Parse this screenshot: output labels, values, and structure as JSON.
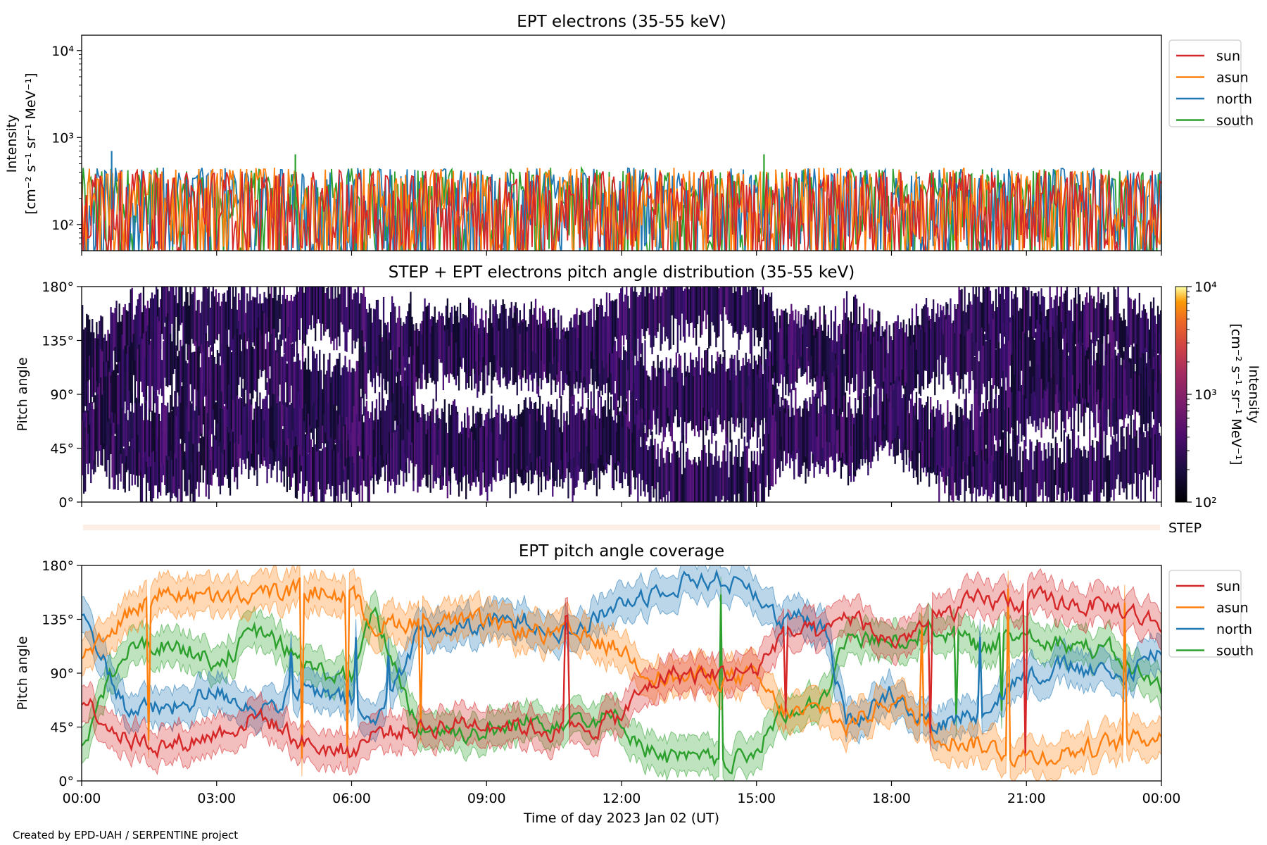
{
  "footer": {
    "credit": "Created by EPD-UAH / SERPENTINE project"
  },
  "colors": {
    "sun": "#d62728",
    "asun": "#ff7f0e",
    "north": "#1f77b4",
    "south": "#2ca02c",
    "step_strip": "#fdeee6"
  },
  "chart_data": [
    {
      "type": "line",
      "title": "EPT electrons (35-55 keV)",
      "ylabel_line1": "Intensity",
      "ylabel_line2": "[cm⁻² s⁻¹ sr⁻¹ MeV⁻¹]",
      "yscale": "log",
      "ylim": [
        50,
        15000
      ],
      "yticks": [
        {
          "value": 100,
          "label": "10²"
        },
        {
          "value": 1000,
          "label": "10³"
        },
        {
          "value": 10000,
          "label": "10⁴"
        }
      ],
      "x_range_hours": [
        0,
        24
      ],
      "legend": {
        "placement": "outside-top-right",
        "entries": [
          "sun",
          "asun",
          "north",
          "south"
        ]
      },
      "series": [
        {
          "name": "sun",
          "baseline": 130,
          "typical_range": [
            50,
            420
          ],
          "max": 430
        },
        {
          "name": "asun",
          "baseline": 140,
          "typical_range": [
            50,
            450
          ],
          "max": 480
        },
        {
          "name": "north",
          "baseline": 150,
          "typical_range": [
            50,
            450
          ],
          "max": 700
        },
        {
          "name": "south",
          "baseline": 150,
          "typical_range": [
            50,
            450
          ],
          "max": 640
        }
      ],
      "notable_spikes": [
        {
          "series": "north",
          "x": "00:40",
          "y": 700
        },
        {
          "series": "south",
          "x": "04:45",
          "y": 640
        },
        {
          "series": "south",
          "x": "15:10",
          "y": 640
        }
      ]
    },
    {
      "type": "heatmap",
      "title": "STEP + EPT electrons pitch angle distribution (35-55 keV)",
      "ylabel": "Pitch angle",
      "ylim": [
        0,
        180
      ],
      "yticks": [
        "0°",
        "45°",
        "90°",
        "135°",
        "180°"
      ],
      "colorbar": {
        "label_line1": "Intensity",
        "label_line2": "[cm⁻² s⁻¹ sr⁻¹ MeV⁻¹]",
        "scale": "log",
        "range": [
          100,
          10000
        ],
        "ticks": [
          {
            "value": 100,
            "label": "10²"
          },
          {
            "value": 1000,
            "label": "10³"
          },
          {
            "value": 10000,
            "label": "10⁴"
          }
        ],
        "colormap": "inferno"
      },
      "note": "Filled pitch-angle bands follow the four EPT telescope tracks (sun, asun, north, south ±~20°); intensities ≈10²–3·10², white where no coverage."
    },
    {
      "type": "strip",
      "label": "STEP",
      "description": "thin STEP coverage strip"
    },
    {
      "type": "line",
      "title": "EPT pitch angle coverage",
      "ylabel": "Pitch angle",
      "xlabel": "Time of day 2023 Jan 02 (UT)",
      "ylim": [
        0,
        180
      ],
      "yticks": [
        "0°",
        "45°",
        "90°",
        "135°",
        "180°"
      ],
      "xticks": [
        "00:00",
        "03:00",
        "06:00",
        "09:00",
        "12:00",
        "15:00",
        "18:00",
        "21:00",
        "00:00"
      ],
      "legend": {
        "placement": "outside-top-right",
        "entries": [
          "sun",
          "asun",
          "north",
          "south"
        ]
      },
      "band_halfwidth_deg": 15,
      "series": [
        {
          "name": "sun",
          "x": [
            0,
            1,
            2,
            3,
            4,
            5,
            6,
            6.5,
            7.5,
            9,
            10,
            11,
            12,
            12.5,
            13,
            14,
            15,
            15.5,
            16,
            16.5,
            17,
            18,
            19,
            20,
            21,
            22,
            23,
            24
          ],
          "y": [
            70,
            35,
            30,
            40,
            55,
            30,
            25,
            40,
            45,
            50,
            45,
            40,
            55,
            75,
            90,
            88,
            92,
            120,
            125,
            118,
            140,
            115,
            135,
            150,
            150,
            148,
            145,
            130
          ]
        },
        {
          "name": "asun",
          "x": [
            0,
            1,
            2,
            3,
            4,
            5,
            6,
            6.5,
            7.5,
            9,
            10,
            11,
            12,
            12.5,
            13,
            14,
            15,
            15.5,
            16,
            16.5,
            17,
            18,
            19,
            20,
            21,
            22,
            23,
            24
          ],
          "y": [
            105,
            140,
            160,
            150,
            155,
            160,
            155,
            130,
            135,
            130,
            125,
            120,
            110,
            95,
            85,
            88,
            85,
            60,
            55,
            60,
            45,
            70,
            40,
            30,
            20,
            25,
            30,
            40
          ]
        },
        {
          "name": "north",
          "x": [
            0,
            1,
            2,
            3,
            4,
            5,
            6,
            6.5,
            7.5,
            9,
            10,
            11,
            12,
            12.5,
            13,
            14,
            15,
            15.5,
            16,
            16.5,
            17,
            18,
            19,
            20,
            21,
            22,
            23,
            24
          ],
          "y": [
            140,
            60,
            60,
            75,
            60,
            75,
            65,
            45,
            125,
            130,
            135,
            125,
            150,
            155,
            165,
            170,
            160,
            130,
            135,
            125,
            50,
            75,
            45,
            60,
            90,
            95,
            85,
            110
          ]
        },
        {
          "name": "south",
          "x": [
            0,
            1,
            2,
            3,
            4,
            5,
            6,
            6.5,
            7.5,
            9,
            10,
            11,
            12,
            12.5,
            13,
            14,
            15,
            15.5,
            16,
            16.5,
            17,
            18,
            19,
            20,
            21,
            22,
            23,
            24
          ],
          "y": [
            35,
            110,
            115,
            100,
            125,
            95,
            85,
            140,
            45,
            40,
            50,
            55,
            50,
            30,
            20,
            15,
            20,
            60,
            55,
            65,
            120,
            115,
            130,
            110,
            125,
            115,
            105,
            75
          ]
        }
      ]
    }
  ]
}
